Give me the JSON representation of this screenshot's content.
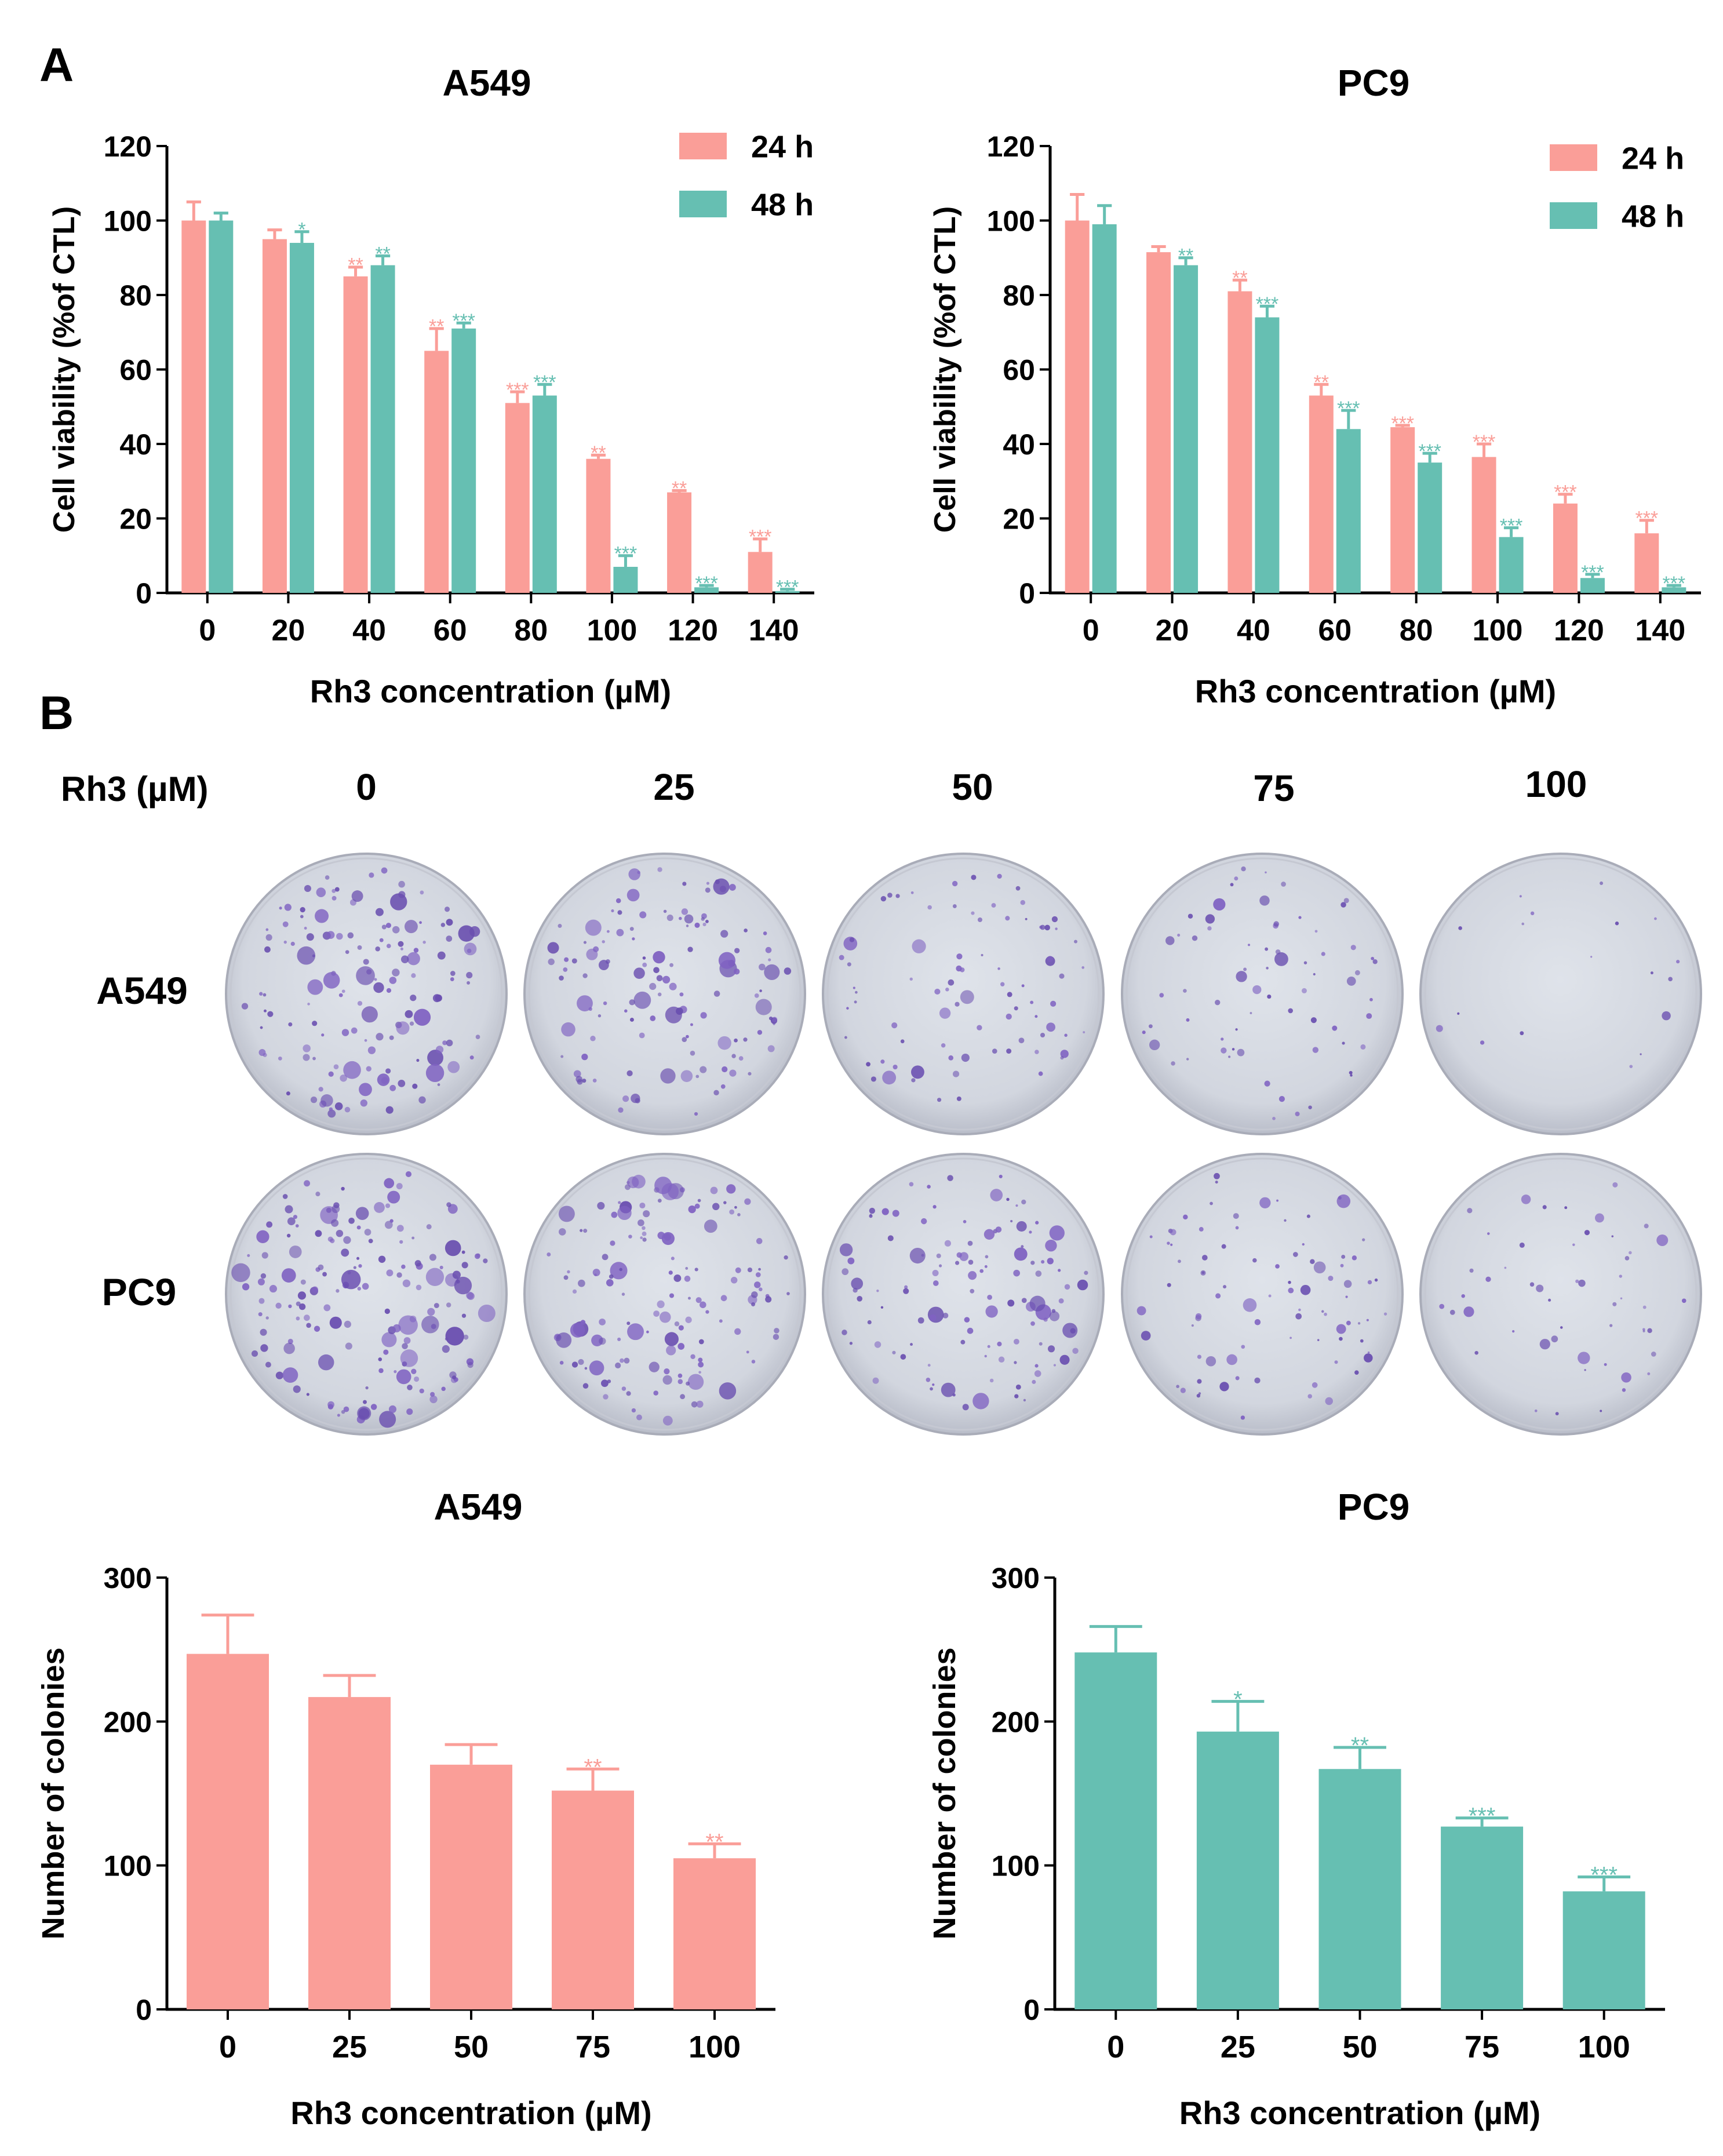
{
  "figure": {
    "panel_a_label": "A",
    "panel_b_label": "B",
    "colors": {
      "h24": "#FA9E98",
      "h48": "#66BFB2",
      "error": "#000000"
    }
  },
  "chart_data": [
    {
      "type": "bar",
      "title": "A549",
      "xlabel": "Rh3 concentration (µM)",
      "ylabel": "Cell viability (%of CTL)",
      "ylim": [
        0,
        120
      ],
      "yticks": [
        0,
        20,
        40,
        60,
        80,
        100,
        120
      ],
      "categories": [
        "0",
        "20",
        "40",
        "60",
        "80",
        "100",
        "120",
        "140"
      ],
      "legend": "top-right",
      "series": [
        {
          "name": "24 h",
          "color": "#FA9E98",
          "values": [
            100,
            95,
            85,
            65,
            51,
            36,
            27,
            11
          ],
          "errors": [
            5,
            2.5,
            2.5,
            6,
            3,
            1,
            0.5,
            3.5
          ],
          "sig": [
            "",
            "",
            "**",
            "**",
            "***",
            "**",
            "**",
            "***"
          ]
        },
        {
          "name": "48 h",
          "color": "#66BFB2",
          "values": [
            100,
            94,
            88,
            71,
            53,
            7,
            1.5,
            0.5
          ],
          "errors": [
            2,
            3,
            2.5,
            1.5,
            3,
            3,
            0.5,
            0.5
          ],
          "sig": [
            "",
            "*",
            "**",
            "***",
            "***",
            "***",
            "***",
            "***"
          ]
        }
      ]
    },
    {
      "type": "bar",
      "title": "PC9",
      "xlabel": "Rh3 concentration (µM)",
      "ylabel": "Cell viability (%of CTL)",
      "ylim": [
        0,
        120
      ],
      "yticks": [
        0,
        20,
        40,
        60,
        80,
        100,
        120
      ],
      "categories": [
        "0",
        "20",
        "40",
        "60",
        "80",
        "100",
        "120",
        "140"
      ],
      "legend": "top-right",
      "series": [
        {
          "name": "24 h",
          "color": "#FA9E98",
          "values": [
            100,
            91.5,
            81,
            53,
            44.5,
            36.5,
            24,
            16
          ],
          "errors": [
            7,
            1.5,
            3,
            3,
            0.5,
            3.5,
            2.5,
            3.5
          ],
          "sig": [
            "",
            "",
            "**",
            "**",
            "***",
            "***",
            "***",
            "***"
          ]
        },
        {
          "name": "48 h",
          "color": "#66BFB2",
          "values": [
            99,
            88,
            74,
            44,
            35,
            15,
            4,
            1.5
          ],
          "errors": [
            5,
            2,
            3,
            5,
            2.5,
            2.5,
            1,
            0.5
          ],
          "sig": [
            "",
            "**",
            "***",
            "***",
            "***",
            "***",
            "***",
            "***"
          ]
        }
      ]
    },
    {
      "type": "bar",
      "title": "A549",
      "xlabel": "Rh3 concentration (µM)",
      "ylabel": "Number of colonies",
      "ylim": [
        0,
        300
      ],
      "yticks": [
        0,
        100,
        200,
        300
      ],
      "categories": [
        "0",
        "25",
        "50",
        "75",
        "100"
      ],
      "series": [
        {
          "name": "A549",
          "color": "#FA9E98",
          "values": [
            247,
            217,
            170,
            152,
            105
          ],
          "errors": [
            27,
            15,
            14,
            15,
            10
          ],
          "sig": [
            "",
            "",
            "",
            "**",
            "**"
          ]
        }
      ]
    },
    {
      "type": "bar",
      "title": "PC9",
      "xlabel": "Rh3 concentration (µM)",
      "ylabel": "Number of colonies",
      "ylim": [
        0,
        300
      ],
      "yticks": [
        0,
        100,
        200,
        300
      ],
      "categories": [
        "0",
        "25",
        "50",
        "75",
        "100"
      ],
      "series": [
        {
          "name": "PC9",
          "color": "#66BFB2",
          "values": [
            248,
            193,
            167,
            127,
            82
          ],
          "errors": [
            18,
            21,
            15,
            6,
            10
          ],
          "sig": [
            "",
            "*",
            "**",
            "***",
            "***"
          ]
        }
      ]
    }
  ],
  "colony_panel": {
    "row_header": "Rh3 (µM)",
    "concentrations": [
      "0",
      "25",
      "50",
      "75",
      "100"
    ],
    "cell_lines": [
      "A549",
      "PC9"
    ],
    "colony_density": {
      "A549": [
        0.95,
        0.85,
        0.55,
        0.45,
        0.12
      ],
      "PC9": [
        1.0,
        0.85,
        0.7,
        0.5,
        0.3
      ]
    }
  }
}
